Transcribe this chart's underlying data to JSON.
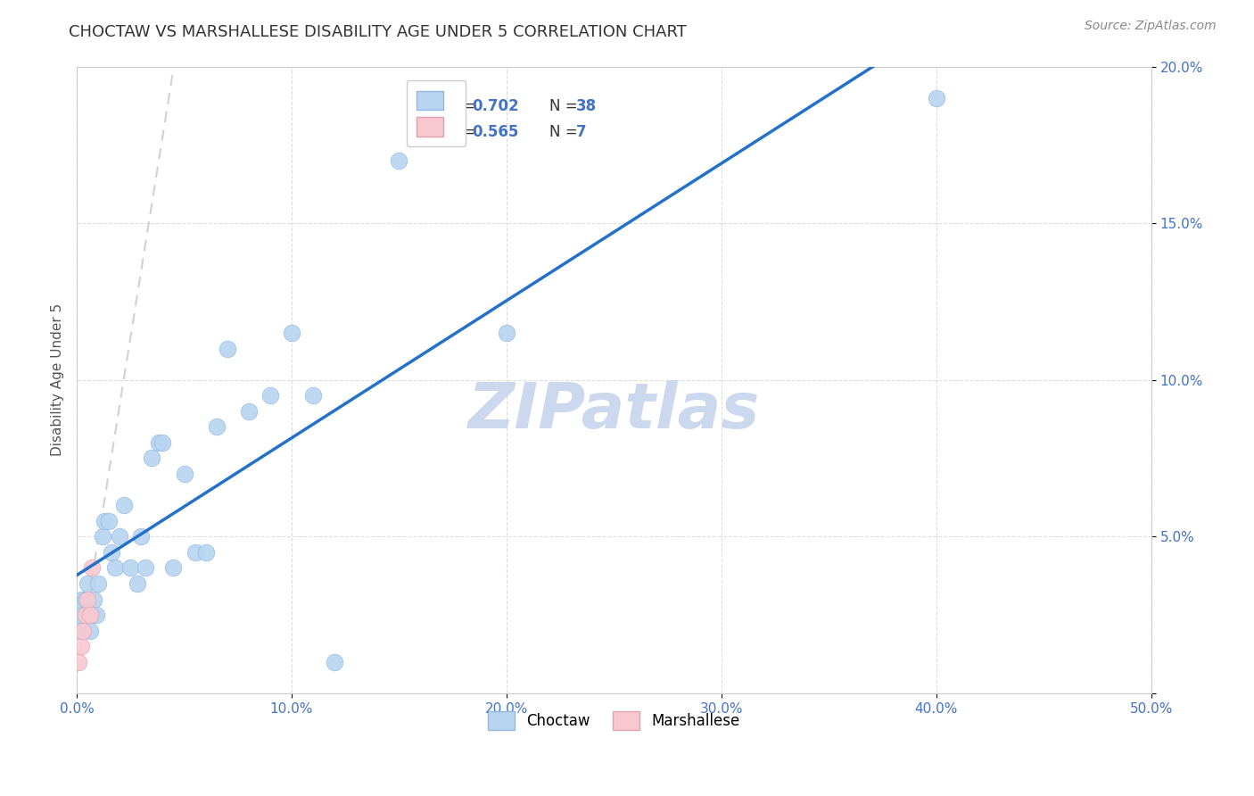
{
  "title": "CHOCTAW VS MARSHALLESE DISABILITY AGE UNDER 5 CORRELATION CHART",
  "source": "Source: ZipAtlas.com",
  "ylabel": "Disability Age Under 5",
  "xlim": [
    0.0,
    0.5
  ],
  "ylim": [
    0.0,
    0.2
  ],
  "xticks": [
    0.0,
    0.1,
    0.2,
    0.3,
    0.4,
    0.5
  ],
  "yticks": [
    0.0,
    0.05,
    0.1,
    0.15,
    0.2
  ],
  "xtick_labels": [
    "0.0%",
    "10.0%",
    "20.0%",
    "30.0%",
    "40.0%",
    "50.0%"
  ],
  "ytick_labels": [
    "",
    "5.0%",
    "10.0%",
    "15.0%",
    "20.0%"
  ],
  "choctaw_x": [
    0.001,
    0.002,
    0.003,
    0.004,
    0.005,
    0.006,
    0.007,
    0.008,
    0.009,
    0.01,
    0.012,
    0.013,
    0.015,
    0.016,
    0.018,
    0.02,
    0.022,
    0.025,
    0.028,
    0.03,
    0.032,
    0.035,
    0.038,
    0.04,
    0.045,
    0.05,
    0.055,
    0.06,
    0.065,
    0.07,
    0.08,
    0.09,
    0.1,
    0.11,
    0.12,
    0.15,
    0.2,
    0.4
  ],
  "choctaw_y": [
    0.02,
    0.03,
    0.025,
    0.03,
    0.035,
    0.02,
    0.025,
    0.03,
    0.025,
    0.035,
    0.05,
    0.055,
    0.055,
    0.045,
    0.04,
    0.05,
    0.06,
    0.04,
    0.035,
    0.05,
    0.04,
    0.075,
    0.08,
    0.08,
    0.04,
    0.07,
    0.045,
    0.045,
    0.085,
    0.11,
    0.09,
    0.095,
    0.115,
    0.095,
    0.01,
    0.17,
    0.115,
    0.19
  ],
  "marshallese_x": [
    0.001,
    0.002,
    0.003,
    0.004,
    0.005,
    0.006,
    0.007
  ],
  "marshallese_y": [
    0.01,
    0.015,
    0.02,
    0.025,
    0.03,
    0.025,
    0.04
  ],
  "choctaw_R": 0.702,
  "choctaw_N": 38,
  "marshallese_R": 0.565,
  "marshallese_N": 7,
  "choctaw_color": "#b8d4f0",
  "choctaw_line_color": "#2472c8",
  "choctaw_edge_color": "#90b8e0",
  "marshallese_color": "#f8c8d0",
  "marshallese_line_color": "#e08090",
  "marshallese_edge_color": "#e0a0b0",
  "grid_color": "#dddddd",
  "background_color": "#ffffff",
  "watermark": "ZIPatlas",
  "watermark_color": "#ccd8ee",
  "title_fontsize": 13,
  "axis_label_fontsize": 11,
  "tick_fontsize": 11,
  "legend_fontsize": 12,
  "source_fontsize": 10,
  "r_n_color": "#4472c4",
  "tick_color": "#4472c4"
}
